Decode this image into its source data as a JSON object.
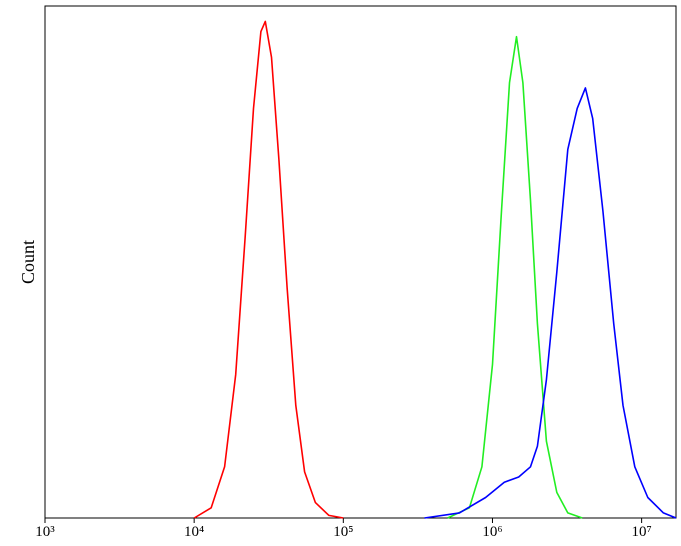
{
  "chart_data": {
    "type": "line",
    "y_label": "Count",
    "xscale": "log",
    "xlim": [
      1000,
      17000000
    ],
    "xticks": [
      {
        "value": 1000,
        "label": "10³"
      },
      {
        "value": 10000,
        "label": "10⁴"
      },
      {
        "value": 100000,
        "label": "10⁵"
      },
      {
        "value": 1000000,
        "label": "10⁶"
      },
      {
        "value": 10000000,
        "label": "10⁷"
      }
    ],
    "ylim": [
      0,
      100
    ],
    "series": [
      {
        "color": "#ff0000",
        "x": [
          10000,
          13000,
          16000,
          19000,
          22000,
          25000,
          28000,
          30000,
          33000,
          37000,
          42000,
          48000,
          55000,
          65000,
          80000,
          100000
        ],
        "values": [
          0,
          2,
          10,
          28,
          55,
          80,
          95,
          97,
          90,
          70,
          45,
          22,
          9,
          3,
          0.5,
          0
        ]
      },
      {
        "color": "#22ee22",
        "x": [
          500000,
          700000,
          850000,
          1000000,
          1150000,
          1300000,
          1450000,
          1600000,
          1800000,
          2000000,
          2300000,
          2700000,
          3200000,
          4000000
        ],
        "values": [
          0,
          2,
          10,
          30,
          60,
          85,
          94,
          85,
          62,
          38,
          15,
          5,
          1,
          0
        ]
      },
      {
        "color": "#0000ff",
        "x": [
          350000,
          600000,
          900000,
          1200000,
          1500000,
          1800000,
          2000000,
          2300000,
          2700000,
          3200000,
          3700000,
          4200000,
          4700000,
          5500000,
          6500000,
          7500000,
          9000000,
          11000000,
          14000000,
          17000000
        ],
        "values": [
          0,
          1,
          4,
          7,
          8,
          10,
          14,
          27,
          48,
          72,
          80,
          84,
          78,
          60,
          38,
          22,
          10,
          4,
          1,
          0
        ]
      }
    ]
  }
}
